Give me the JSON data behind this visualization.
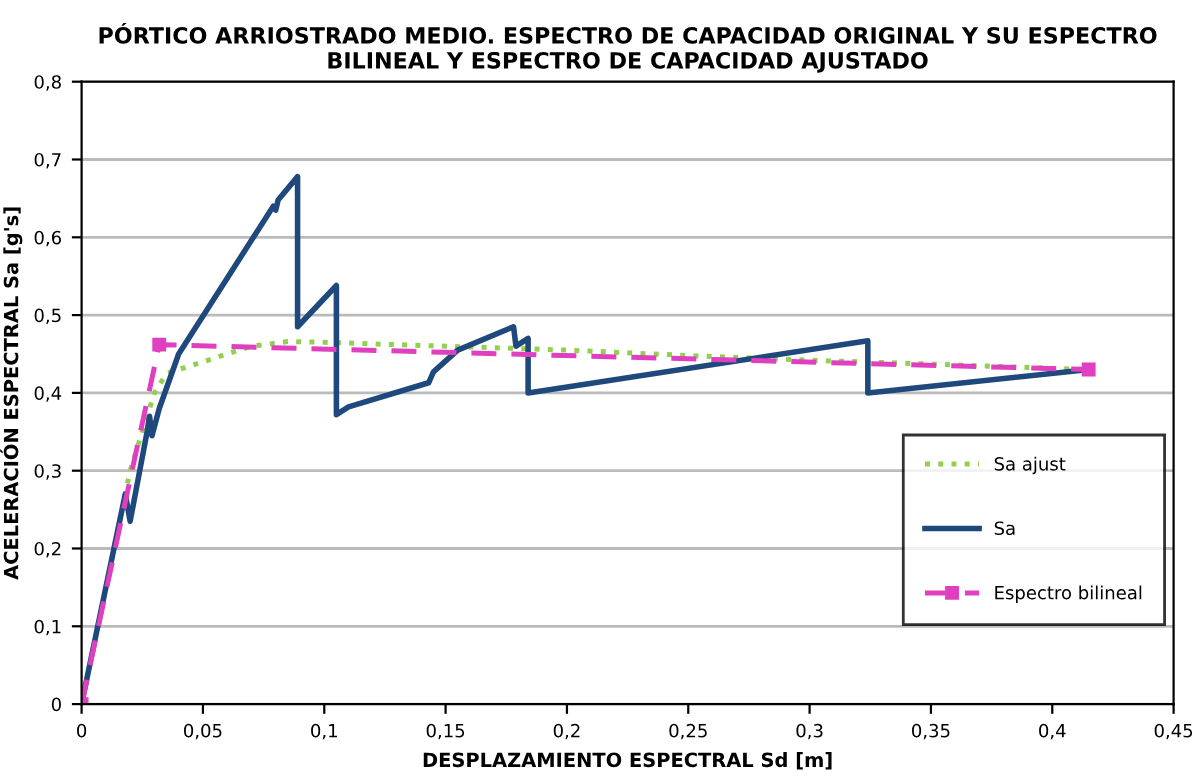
{
  "chart_data": {
    "type": "line",
    "title": "PÓRTICO ARRIOSTRADO MEDIO. ESPECTRO DE CAPACIDAD ORIGINAL Y SU ESPECTRO BILINEAL Y ESPECTRO DE CAPACIDAD AJUSTADO",
    "xlabel": "DESPLAZAMIENTO ESPECTRAL Sd [m]",
    "ylabel": "ACELERACIÓN ESPECTRAL Sa [g's]",
    "xlim": [
      0,
      0.45
    ],
    "xticks": [
      {
        "value": 0,
        "label": "0"
      },
      {
        "value": 0.05,
        "label": "0,05"
      },
      {
        "value": 0.1,
        "label": "0,1"
      },
      {
        "value": 0.15,
        "label": "0,15"
      },
      {
        "value": 0.2,
        "label": "0,2"
      },
      {
        "value": 0.25,
        "label": "0,25"
      },
      {
        "value": 0.3,
        "label": "0,3"
      },
      {
        "value": 0.35,
        "label": "0,35"
      },
      {
        "value": 0.4,
        "label": "0,4"
      },
      {
        "value": 0.45,
        "label": "0,45"
      }
    ],
    "ylim": [
      0,
      0.8
    ],
    "yticks": [
      {
        "value": 0,
        "label": "0"
      },
      {
        "value": 0.1,
        "label": "0,1"
      },
      {
        "value": 0.2,
        "label": "0,2"
      },
      {
        "value": 0.3,
        "label": "0,3"
      },
      {
        "value": 0.4,
        "label": "0,4"
      },
      {
        "value": 0.5,
        "label": "0,5"
      },
      {
        "value": 0.6,
        "label": "0,6"
      },
      {
        "value": 0.7,
        "label": "0,7"
      },
      {
        "value": 0.8,
        "label": "0,8"
      }
    ],
    "grid": "y",
    "legend": "right",
    "series": [
      {
        "name": "Sa ajust",
        "color": "#92d050",
        "line_style": "dotted",
        "marker": "none",
        "x": [
          0,
          0.02,
          0.03,
          0.035,
          0.05,
          0.07,
          0.085,
          0.1,
          0.15,
          0.2,
          0.25,
          0.3,
          0.35,
          0.415
        ],
        "values": [
          0,
          0.3,
          0.4,
          0.425,
          0.44,
          0.46,
          0.466,
          0.465,
          0.46,
          0.455,
          0.448,
          0.442,
          0.437,
          0.43
        ]
      },
      {
        "name": "Sa",
        "color": "#1f497d",
        "line_style": "solid",
        "marker": "none",
        "x": [
          0,
          0.018,
          0.02,
          0.027,
          0.028,
          0.029,
          0.032,
          0.04,
          0.079,
          0.08,
          0.081,
          0.089,
          0.089,
          0.105,
          0.105,
          0.11,
          0.143,
          0.145,
          0.155,
          0.178,
          0.179,
          0.184,
          0.184,
          0.324,
          0.324,
          0.415
        ],
        "values": [
          0,
          0.27,
          0.235,
          0.35,
          0.37,
          0.345,
          0.38,
          0.45,
          0.64,
          0.635,
          0.648,
          0.678,
          0.485,
          0.538,
          0.372,
          0.382,
          0.413,
          0.427,
          0.455,
          0.485,
          0.46,
          0.47,
          0.4,
          0.467,
          0.4,
          0.43
        ]
      },
      {
        "name": "Espectro bilineal",
        "color": "#e040c0",
        "line_style": "dashed",
        "marker": "square",
        "x": [
          0,
          0.032,
          0.415
        ],
        "values": [
          0,
          0.462,
          0.43
        ]
      }
    ]
  }
}
